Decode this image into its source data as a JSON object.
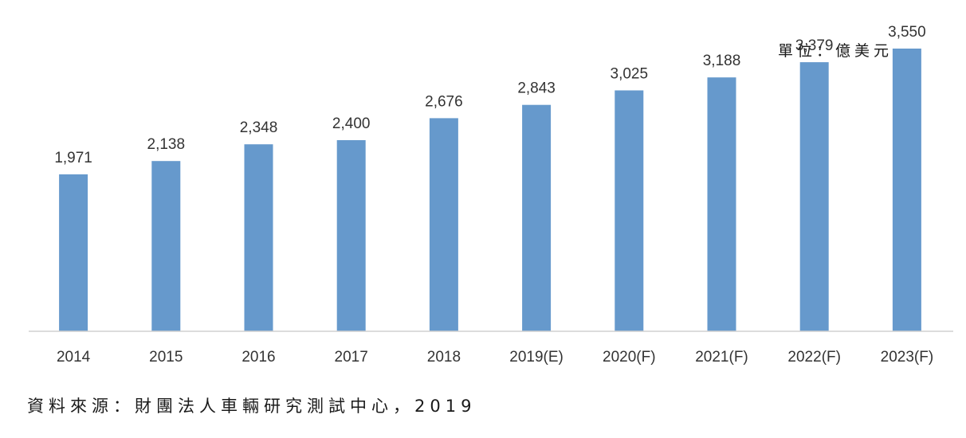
{
  "chart_data": {
    "type": "bar",
    "unit": "單位：億美元",
    "categories": [
      "2014",
      "2015",
      "2016",
      "2017",
      "2018",
      "2019(E)",
      "2020(F)",
      "2021(F)",
      "2022(F)",
      "2023(F)"
    ],
    "values": [
      1971,
      2138,
      2348,
      2400,
      2676,
      2843,
      3025,
      3188,
      3379,
      3550
    ],
    "data_labels": [
      "1,971",
      "2,138",
      "2,348",
      "2,400",
      "2,676",
      "2,843",
      "3,025",
      "3,188",
      "3,379",
      "3,550"
    ],
    "ylim": [
      0,
      3950
    ],
    "grid": false,
    "legend": "none",
    "bar_color": "#6699cc"
  },
  "source": "資料來源：財團法人車輛研究測試中心，2019"
}
